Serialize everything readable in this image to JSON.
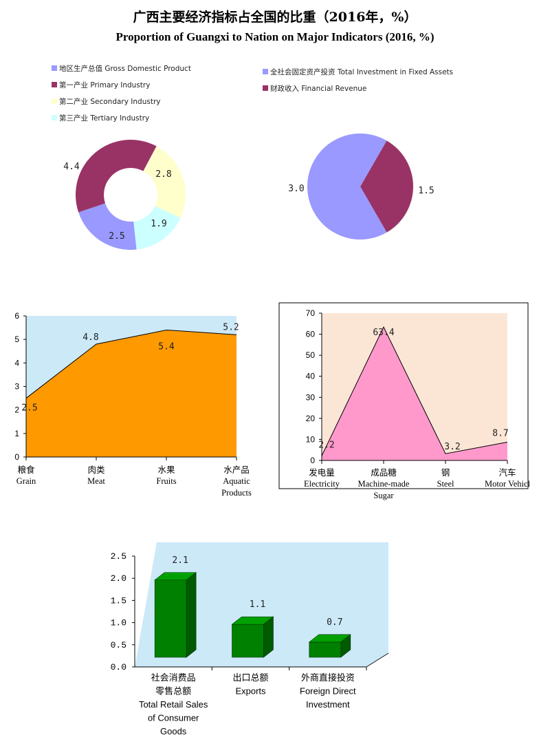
{
  "title_cn": "广西主要经济指标占全国的比重（2016年，%）",
  "title_en": "Proportion of Guangxi to Nation on Major Indicators (2016, %)",
  "chart_data": [
    {
      "type": "pie",
      "variant": "donut",
      "legend": [
        {
          "name": "地区生产总值 Gross Domestic Product",
          "color": "#9999ff"
        },
        {
          "name": "第一产业  Primary  Industry",
          "color": "#993366"
        },
        {
          "name": "第二产业  Secondary  Industry",
          "color": "#ffffcc"
        },
        {
          "name": "第三产业  Tertiary  Industry",
          "color": "#ccffff"
        }
      ],
      "slices": [
        {
          "name": "地区生产总值 Gross Domestic Product",
          "value": 2.5,
          "label": "2.5",
          "color": "#9999ff"
        },
        {
          "name": "第一产业  Primary  Industry",
          "value": 4.4,
          "label": "4.4",
          "color": "#993366"
        },
        {
          "name": "第二产业  Secondary  Industry",
          "value": 2.8,
          "label": "2.8",
          "color": "#ffffcc"
        },
        {
          "name": "第三产业  Tertiary  Industry",
          "value": 1.9,
          "label": "1.9",
          "color": "#ccffff"
        }
      ]
    },
    {
      "type": "pie",
      "legend": [
        {
          "name": "全社会固定资产投资 Total Investment in Fixed Assets",
          "color": "#9999ff"
        },
        {
          "name": "财政收入  Financial Revenue",
          "color": "#993366"
        }
      ],
      "slices": [
        {
          "name": "全社会固定资产投资 Total Investment in Fixed Assets",
          "value": 3.0,
          "label": "3.0",
          "color": "#9999ff"
        },
        {
          "name": "财政收入  Financial Revenue",
          "value": 1.5,
          "label": "1.5",
          "color": "#993366"
        }
      ]
    },
    {
      "type": "area",
      "categories": [
        {
          "cn": "粮食",
          "en": [
            "Grain"
          ]
        },
        {
          "cn": "肉类",
          "en": [
            "Meat"
          ]
        },
        {
          "cn": "水果",
          "en": [
            "Fruits"
          ]
        },
        {
          "cn": "水产品",
          "en": [
            "Aquatic",
            "Products"
          ]
        }
      ],
      "values": [
        2.5,
        4.8,
        5.4,
        5.2
      ],
      "labels": [
        "2.5",
        "4.8",
        "5.4",
        "5.2"
      ],
      "ylim": [
        0,
        6
      ],
      "yticks": [
        "0",
        "1",
        "2",
        "3",
        "4",
        "5",
        "6"
      ],
      "fill_color": "#ff9900",
      "background_color": "#cce9f8"
    },
    {
      "type": "area",
      "categories": [
        {
          "cn": "发电量",
          "en": [
            "Electricity"
          ]
        },
        {
          "cn": "成品糖",
          "en": [
            "Machine-made",
            "Sugar"
          ]
        },
        {
          "cn": "钢",
          "en": [
            "Steel"
          ]
        },
        {
          "cn": "汽车",
          "en": [
            "Motor Vehicl"
          ]
        }
      ],
      "values": [
        2.2,
        63.4,
        3.2,
        8.7
      ],
      "labels": [
        "2.2",
        "63.4",
        "3.2",
        "8.7"
      ],
      "ylim": [
        0,
        70
      ],
      "yticks": [
        "0",
        "10",
        "20",
        "30",
        "40",
        "50",
        "60",
        "70"
      ],
      "fill_color": "#ff99cc",
      "background_color": "#fbe6d6"
    },
    {
      "type": "bar",
      "variant": "3d",
      "categories": [
        {
          "lines": [
            "社会消费品",
            "零售总额",
            "Total Retail Sales",
            "of Consumer",
            "Goods"
          ]
        },
        {
          "lines": [
            "出口总额",
            "Exports"
          ]
        },
        {
          "lines": [
            "外商直接投资",
            "Foreign Direct",
            "Investment"
          ]
        }
      ],
      "values": [
        2.1,
        1.1,
        0.7
      ],
      "labels": [
        "2.1",
        "1.1",
        "0.7"
      ],
      "ylim": [
        0,
        2.5
      ],
      "yticks": [
        "0.0",
        "0.5",
        "1.0",
        "1.5",
        "2.0",
        "2.5"
      ],
      "bar_color": "#008000",
      "background_color": "#cce9f8"
    }
  ]
}
